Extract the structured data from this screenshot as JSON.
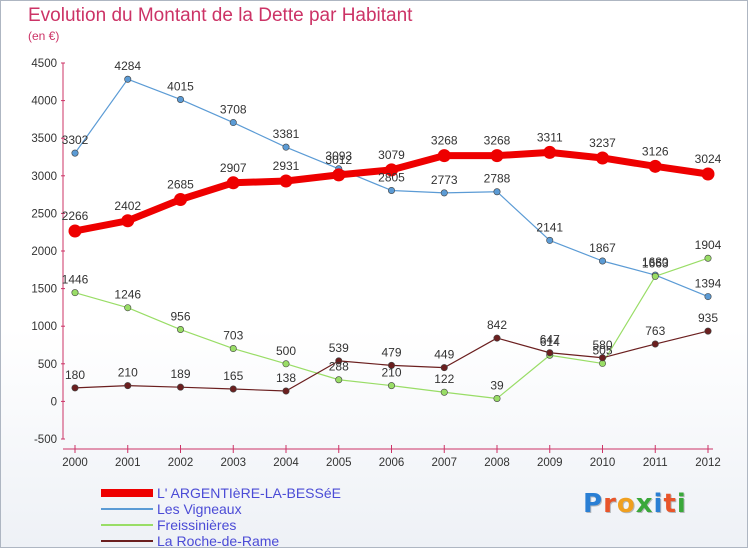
{
  "header": {
    "title": "Evolution du Montant de la Dette par Habitant",
    "subtitle": "(en €)"
  },
  "logo": {
    "text": "Proxiti",
    "letter_colors": [
      "#2a7fd4",
      "#e8552a",
      "#f0a020",
      "#3aa83a",
      "#2a7fd4",
      "#e8552a",
      "#3aa83a"
    ]
  },
  "chart_data": {
    "type": "line",
    "title": "Evolution du Montant de la Dette par Habitant",
    "subtitle": "(en €)",
    "xlabel": "",
    "ylabel": "",
    "x": [
      "2000",
      "2001",
      "2002",
      "2003",
      "2004",
      "2005",
      "2006",
      "2007",
      "2008",
      "2009",
      "2010",
      "2011",
      "2012"
    ],
    "ylim": [
      -500,
      4500
    ],
    "yticks": [
      "-500",
      "0",
      "500",
      "1000",
      "1500",
      "2000",
      "2500",
      "3000",
      "3500",
      "4000",
      "4500"
    ],
    "grid": false,
    "legend_position": "bottom-left",
    "series": [
      {
        "name": "L' ARGENTIèRE-LA-BESSéE",
        "color": "#ee0000",
        "emphasis": "thick",
        "values": [
          2266,
          2402,
          2685,
          2907,
          2931,
          3012,
          3079,
          3268,
          3268,
          3311,
          3237,
          3126,
          3024
        ],
        "labels": [
          "2266",
          "2402",
          "2685",
          "2907",
          "2931",
          "3012",
          "3079",
          "3268",
          "3268",
          "3311",
          "3237",
          "3126",
          "3024"
        ]
      },
      {
        "name": "Les Vigneaux",
        "color": "#5b9bd5",
        "emphasis": "thin",
        "values": [
          3302,
          4284,
          4015,
          3708,
          3381,
          3093,
          2805,
          2773,
          2788,
          2141,
          1867,
          1680,
          1394
        ],
        "labels": [
          "3302",
          "4284",
          "4015",
          "3708",
          "3381",
          "3093",
          "2805",
          "2773",
          "2788",
          "2141",
          "1867",
          "1680",
          "1394"
        ]
      },
      {
        "name": "Freissinières",
        "color": "#99dd66",
        "emphasis": "thin",
        "values": [
          1446,
          1246,
          956,
          703,
          500,
          288,
          210,
          122,
          39,
          614,
          505,
          1663,
          1904
        ],
        "labels": [
          "1446",
          "1246",
          "956",
          "703",
          "500",
          "288",
          "210",
          "122",
          "39",
          "614",
          "505",
          "1663",
          "1904"
        ]
      },
      {
        "name": "La Roche-de-Rame",
        "color": "#6b1f1f",
        "emphasis": "thin",
        "values": [
          180,
          210,
          189,
          165,
          138,
          539,
          479,
          449,
          842,
          647,
          580,
          763,
          935
        ],
        "labels": [
          "180",
          "210",
          "189",
          "165",
          "138",
          "539",
          "479",
          "449",
          "842",
          "647",
          "580",
          "763",
          "935"
        ]
      }
    ]
  }
}
